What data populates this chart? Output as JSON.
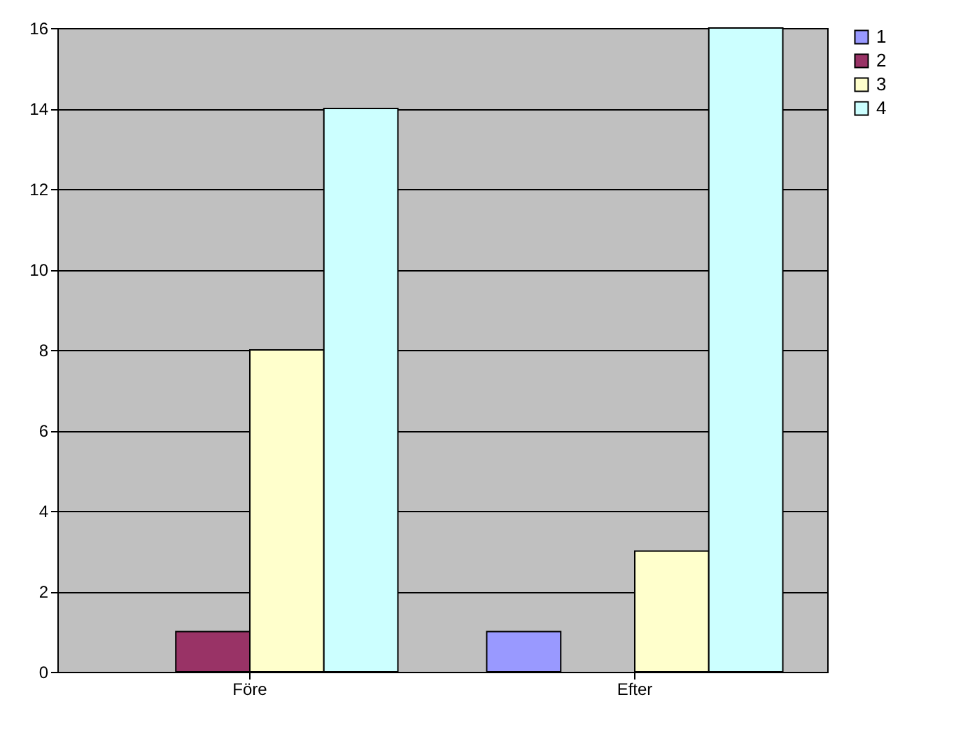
{
  "chart_data": {
    "type": "bar",
    "categories": [
      "Före",
      "Efter"
    ],
    "series": [
      {
        "name": "1",
        "color": "#9999ff",
        "values": [
          0,
          1
        ]
      },
      {
        "name": "2",
        "color": "#993366",
        "values": [
          1,
          0
        ]
      },
      {
        "name": "3",
        "color": "#ffffcc",
        "values": [
          8,
          3
        ]
      },
      {
        "name": "4",
        "color": "#ccffff",
        "values": [
          14,
          16
        ]
      }
    ],
    "ylim": [
      0,
      16
    ],
    "yticks": [
      0,
      2,
      4,
      6,
      8,
      10,
      12,
      14,
      16
    ],
    "grid": "y",
    "legend": "right"
  }
}
